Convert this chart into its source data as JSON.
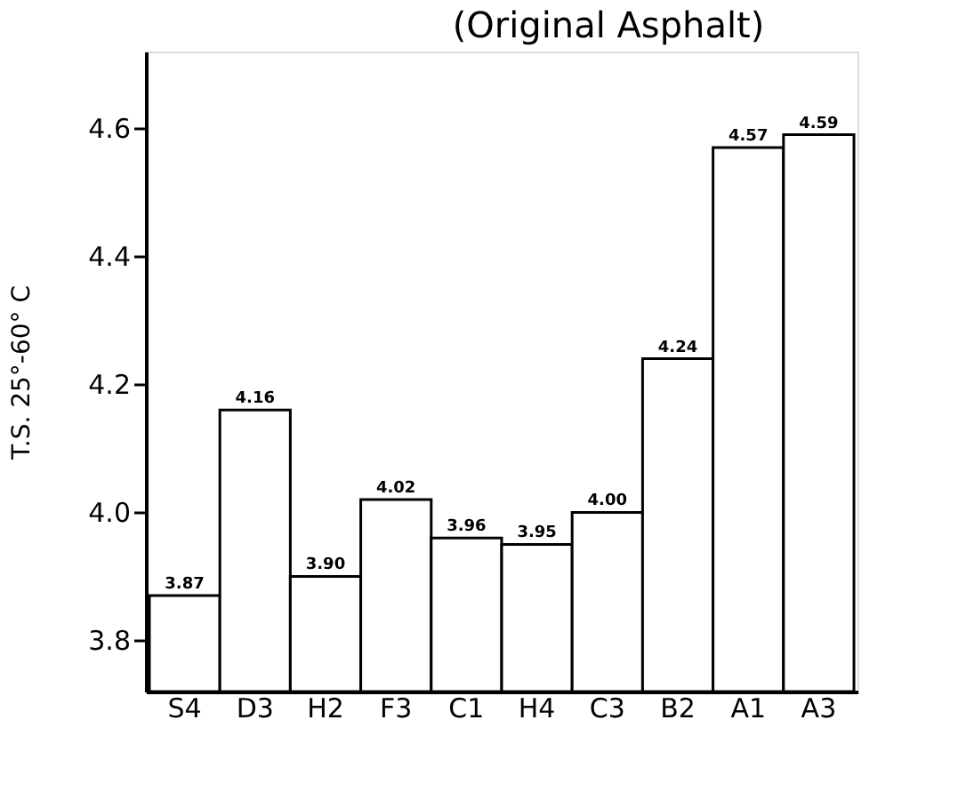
{
  "chart_data": {
    "type": "bar",
    "title": "(Original Asphalt)",
    "ylabel": "T.S. 25°-60° C",
    "categories": [
      "S4",
      "D3",
      "H2",
      "F3",
      "C1",
      "H4",
      "C3",
      "B2",
      "A1",
      "A3"
    ],
    "values": [
      3.87,
      4.16,
      3.9,
      4.02,
      3.96,
      3.95,
      4.0,
      4.24,
      4.57,
      4.59
    ],
    "value_labels": [
      "3.87",
      "4.16",
      "3.90",
      "4.02",
      "3.96",
      "3.95",
      "4.00",
      "4.24",
      "4.57",
      "4.59"
    ],
    "color": "#ffffff",
    "ylim": [
      3.72,
      4.72
    ],
    "yticks": [
      3.8,
      {
        "value": 4.0,
        "label": "4.0"
      },
      4.2,
      4.4,
      4.6
    ],
    "grid": false
  }
}
